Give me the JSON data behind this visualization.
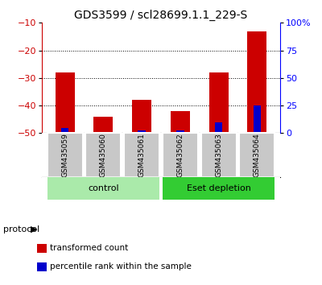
{
  "title": "GDS3599 / scl28699.1.1_229-S",
  "samples": [
    "GSM435059",
    "GSM435060",
    "GSM435061",
    "GSM435062",
    "GSM435063",
    "GSM435064"
  ],
  "red_values": [
    -28,
    -44,
    -38,
    -42,
    -28,
    -13
  ],
  "blue_values": [
    -48,
    -50,
    -49,
    -49,
    -46,
    -40
  ],
  "ylim_left": [
    -50,
    -10
  ],
  "yticks_left": [
    -50,
    -40,
    -30,
    -20,
    -10
  ],
  "yticks_right": [
    0,
    25,
    50,
    75,
    100
  ],
  "groups": [
    {
      "label": "control",
      "indices": [
        0,
        1,
        2
      ],
      "color": "#aaeaaa"
    },
    {
      "label": "Eset depletion",
      "indices": [
        3,
        4,
        5
      ],
      "color": "#33cc33"
    }
  ],
  "protocol_label": "protocol",
  "legend_items": [
    {
      "label": "transformed count",
      "color": "#cc0000"
    },
    {
      "label": "percentile rank within the sample",
      "color": "#0000cc"
    }
  ],
  "bar_width": 0.5,
  "red_color": "#cc0000",
  "blue_color": "#0000cc",
  "tick_area_color": "#c8c8c8",
  "title_fontsize": 10,
  "axis_fontsize": 8
}
